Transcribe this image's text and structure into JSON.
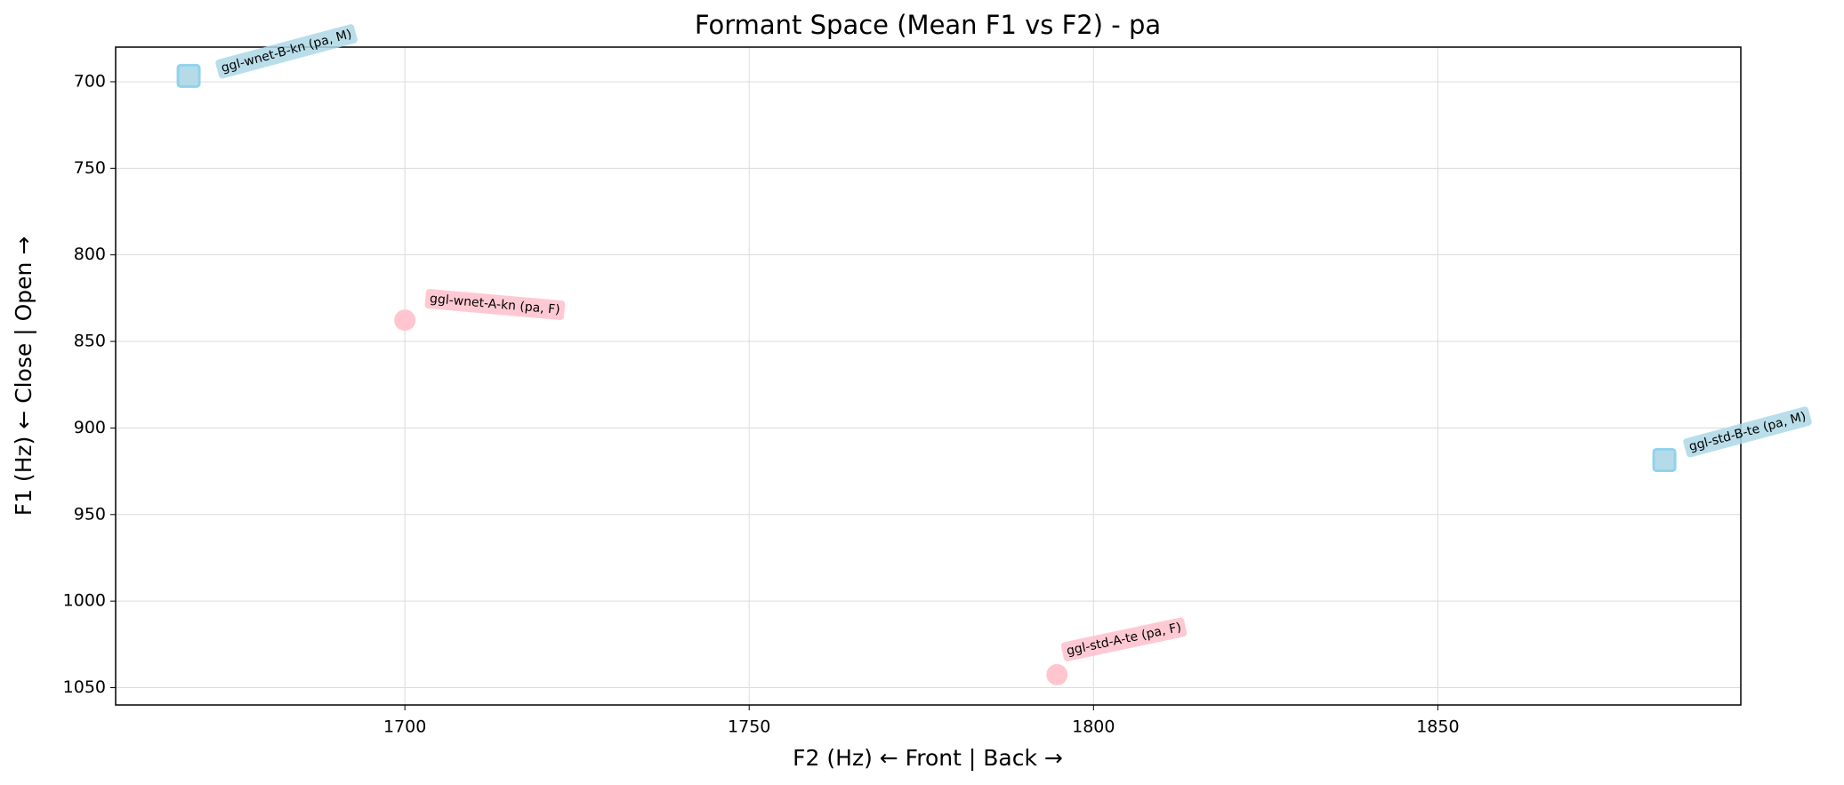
{
  "chart_data": {
    "type": "scatter",
    "title": "Formant Space (Mean F1 vs F2) - pa",
    "x_label": "F2 (Hz) ← Front | Back →",
    "y_label": "F1 (Hz) ← Close | Open →",
    "xlim": [
      1658,
      1894
    ],
    "xticks": [
      1700,
      1750,
      1800,
      1850
    ],
    "ylim": [
      1060,
      680
    ],
    "yticks": [
      700,
      750,
      800,
      850,
      900,
      950,
      1000,
      1050
    ],
    "grid": true,
    "points": [
      {
        "label": "ggl-wnet-B-kn (pa, M)",
        "x": 1668.6,
        "y": 696.6,
        "marker": "square",
        "color": "#add8e6"
      },
      {
        "label": "ggl-wnet-A-kn (pa, F)",
        "x": 1700,
        "y": 837.7,
        "marker": "circle",
        "color": "#ffc0cb"
      },
      {
        "label": "ggl-std-A-te (pa, F)",
        "x": 1794.7,
        "y": 1042.5,
        "marker": "circle",
        "color": "#ffc0cb"
      },
      {
        "label": "ggl-std-B-te (pa, M)",
        "x": 1882.9,
        "y": 918.5,
        "marker": "square",
        "color": "#add8e6"
      }
    ]
  }
}
